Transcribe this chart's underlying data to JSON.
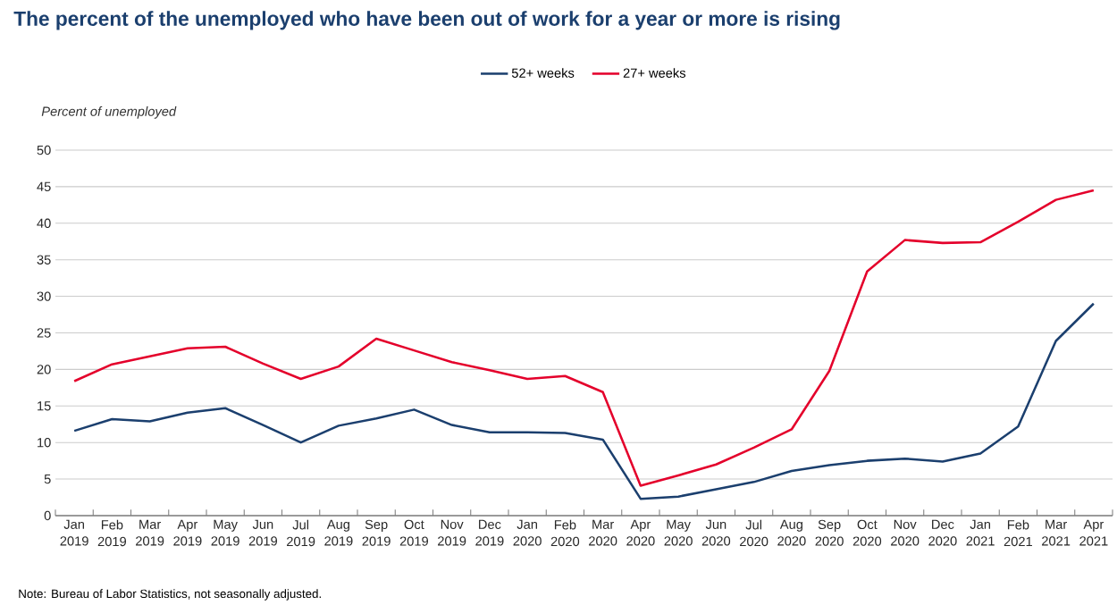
{
  "chart_data": {
    "type": "line",
    "title": "The percent of the unemployed who have been out of work for a year or more is rising",
    "ylabel": "Percent of unemployed",
    "annotations": [
      "Note: Bureau of Labor Statistics, not seasonally adjusted."
    ],
    "categories": [
      "Jan 2019",
      "Feb 2019",
      "Mar 2019",
      "Apr 2019",
      "May 2019",
      "Jun 2019",
      "Jul 2019",
      "Aug 2019",
      "Sep 2019",
      "Oct 2019",
      "Nov 2019",
      "Dec 2019",
      "Jan 2020",
      "Feb 2020",
      "Mar 2020",
      "Apr 2020",
      "May 2020",
      "Jun 2020",
      "Jul 2020",
      "Aug 2020",
      "Sep 2020",
      "Oct 2020",
      "Nov 2020",
      "Dec 2020",
      "Jan 2021",
      "Feb 2021",
      "Mar 2021",
      "Apr 2021"
    ],
    "series": [
      {
        "name": "52+ weeks",
        "color": "#1b3f6e",
        "values": [
          11.6,
          13.2,
          12.9,
          14.1,
          14.7,
          12.4,
          10.0,
          12.3,
          13.3,
          14.5,
          12.4,
          11.4,
          11.4,
          11.3,
          10.4,
          2.3,
          2.6,
          3.6,
          4.6,
          6.1,
          6.9,
          7.5,
          7.8,
          7.4,
          8.5,
          12.2,
          23.9,
          29.0
        ]
      },
      {
        "name": "27+ weeks",
        "color": "#e4002b",
        "values": [
          18.4,
          20.7,
          21.8,
          22.9,
          23.1,
          20.8,
          18.7,
          20.4,
          24.2,
          22.6,
          21.0,
          19.9,
          18.7,
          19.1,
          16.9,
          4.1,
          5.5,
          7.0,
          9.3,
          11.8,
          19.8,
          33.4,
          37.7,
          37.3,
          37.4,
          40.2,
          43.2,
          44.5
        ]
      }
    ],
    "ylim": [
      0,
      50
    ],
    "yticks": [
      0,
      5,
      10,
      15,
      20,
      25,
      30,
      35,
      40,
      45,
      50
    ],
    "grid": "y",
    "legend": "top"
  }
}
